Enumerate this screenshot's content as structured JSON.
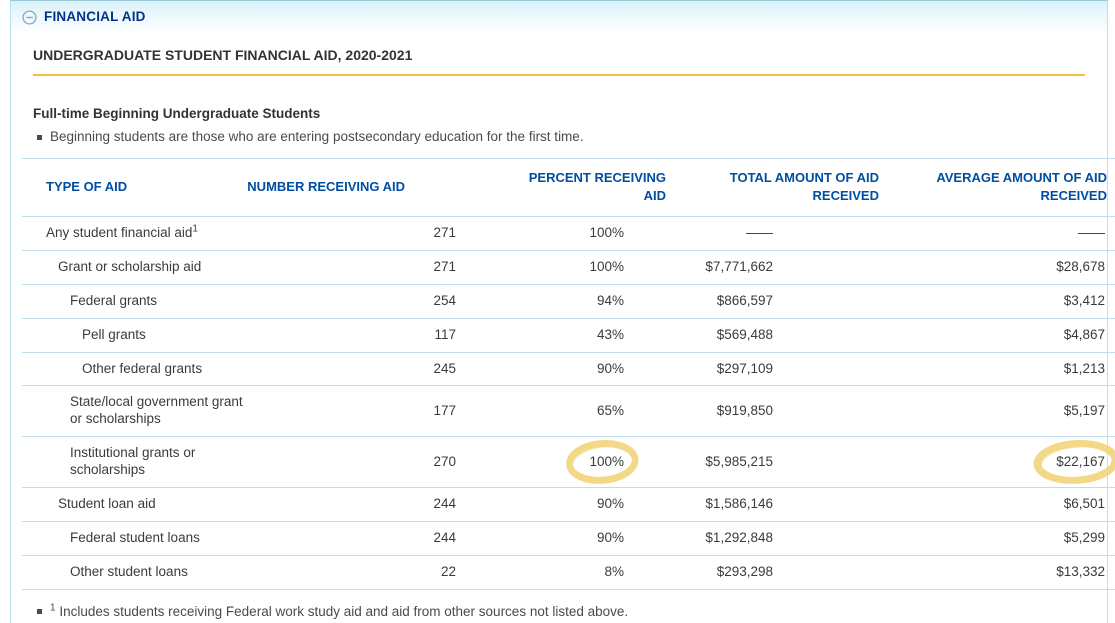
{
  "colors": {
    "section_title_blue": "#00338D",
    "column_header_blue": "#004EA2",
    "gold_rule": "#F5C13D",
    "row_line_blue": "#BFDCE8",
    "panel_border_blue": "#BEE0EA",
    "header_gradient_top": "#D8F0F8",
    "highlight_yellow": "#F0CF6D",
    "body_text": "#3B3B3B"
  },
  "section": {
    "title": "FINANCIAL AID",
    "collapse_icon": "minus-circle-icon"
  },
  "page": {
    "subtitle": "UNDERGRADUATE STUDENT FINANCIAL AID, 2020-2021"
  },
  "intro": {
    "heading": "Full-time Beginning Undergraduate Students",
    "bullet_text": "Beginning students are those who are entering postsecondary education for the first time."
  },
  "table": {
    "columns": [
      "TYPE OF AID",
      "NUMBER RECEIVING AID",
      "PERCENT RECEIVING AID",
      "TOTAL AMOUNT OF AID RECEIVED",
      "AVERAGE AMOUNT OF AID RECEIVED"
    ],
    "rows": [
      {
        "label": "Any student financial aid",
        "footnote_marker": "1",
        "indent": 0,
        "number": "271",
        "percent": "100%",
        "total": "——",
        "average": "——"
      },
      {
        "label": "Grant or scholarship aid",
        "indent": 1,
        "number": "271",
        "percent": "100%",
        "total": "$7,771,662",
        "average": "$28,678"
      },
      {
        "label": "Federal grants",
        "indent": 2,
        "number": "254",
        "percent": "94%",
        "total": "$866,597",
        "average": "$3,412"
      },
      {
        "label": "Pell grants",
        "indent": 3,
        "number": "117",
        "percent": "43%",
        "total": "$569,488",
        "average": "$4,867"
      },
      {
        "label": "Other federal grants",
        "indent": 3,
        "number": "245",
        "percent": "90%",
        "total": "$297,109",
        "average": "$1,213"
      },
      {
        "label": "State/local government grant or scholarships",
        "indent": 2,
        "number": "177",
        "percent": "65%",
        "total": "$919,850",
        "average": "$5,197"
      },
      {
        "label": "Institutional grants or scholarships",
        "indent": 2,
        "number": "270",
        "percent": "100%",
        "total": "$5,985,215",
        "average": "$22,167",
        "highlight": [
          "percent",
          "average"
        ]
      },
      {
        "label": "Student loan aid",
        "indent": 1,
        "number": "244",
        "percent": "90%",
        "total": "$1,586,146",
        "average": "$6,501"
      },
      {
        "label": "Federal student loans",
        "indent": 2,
        "number": "244",
        "percent": "90%",
        "total": "$1,292,848",
        "average": "$5,299"
      },
      {
        "label": "Other student loans",
        "indent": 2,
        "number": "22",
        "percent": "8%",
        "total": "$293,298",
        "average": "$13,332"
      }
    ]
  },
  "footnote": {
    "marker": "1",
    "text": "Includes students receiving Federal work study aid and aid from other sources not listed above."
  }
}
